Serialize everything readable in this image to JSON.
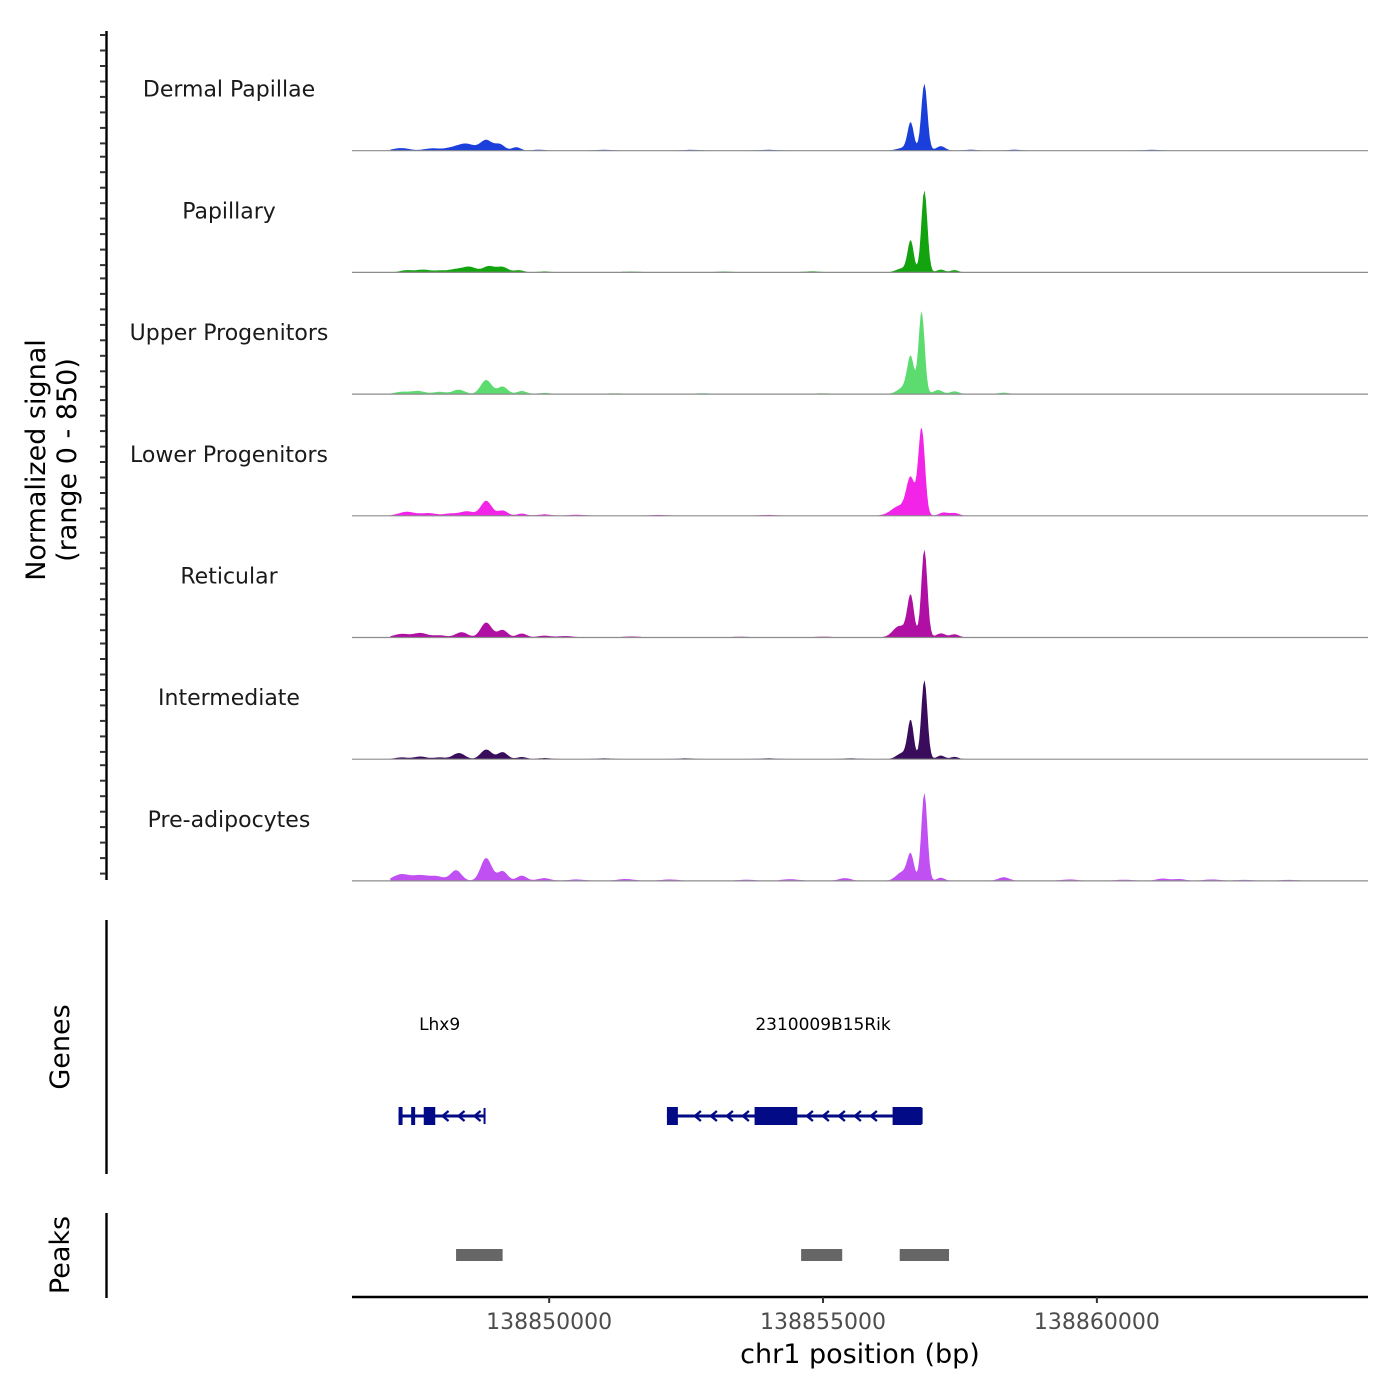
{
  "chart_data": {
    "type": "area",
    "title": "",
    "ylabel_line1": "Normalized signal",
    "ylabel_line2": "(range 0 - 850)",
    "xlabel": "chr1 position (bp)",
    "xlim": [
      138846400,
      138864950
    ],
    "ylim": [
      0,
      850
    ],
    "xticks": [
      {
        "value": 138850000,
        "label": "138850000"
      },
      {
        "value": 138855000,
        "label": "138855000"
      },
      {
        "value": 138860000,
        "label": "138860000"
      }
    ],
    "series": [
      {
        "name": "Dermal Papillae",
        "color": "#1a3fdb",
        "peaks": [
          [
            138847300,
            30,
            150
          ],
          [
            138847850,
            25,
            140
          ],
          [
            138848250,
            35,
            160
          ],
          [
            138848500,
            70,
            140
          ],
          [
            138848850,
            120,
            110
          ],
          [
            138849100,
            70,
            90
          ],
          [
            138849400,
            40,
            80
          ],
          [
            138849800,
            12,
            100
          ],
          [
            138851000,
            8,
            150
          ],
          [
            138852600,
            8,
            150
          ],
          [
            138854000,
            8,
            150
          ],
          [
            138856500,
            35,
            130
          ],
          [
            138856600,
            300,
            55
          ],
          [
            138856850,
            760,
            55
          ],
          [
            138857150,
            50,
            80
          ],
          [
            138857700,
            10,
            100
          ],
          [
            138858500,
            10,
            100
          ],
          [
            138861000,
            8,
            150
          ]
        ]
      },
      {
        "name": "Papillary",
        "color": "#13a30f",
        "peaks": [
          [
            138847400,
            25,
            120
          ],
          [
            138847700,
            30,
            120
          ],
          [
            138848000,
            20,
            120
          ],
          [
            138848300,
            35,
            130
          ],
          [
            138848550,
            60,
            120
          ],
          [
            138848900,
            70,
            110
          ],
          [
            138849150,
            60,
            100
          ],
          [
            138849450,
            25,
            90
          ],
          [
            138849900,
            10,
            120
          ],
          [
            138851500,
            8,
            150
          ],
          [
            138853200,
            8,
            150
          ],
          [
            138854800,
            10,
            150
          ],
          [
            138856450,
            45,
            110
          ],
          [
            138856600,
            350,
            55
          ],
          [
            138856850,
            930,
            55
          ],
          [
            138857150,
            30,
            70
          ],
          [
            138857400,
            25,
            70
          ]
        ]
      },
      {
        "name": "Upper Progenitors",
        "color": "#5cdc6f",
        "peaks": [
          [
            138847300,
            25,
            120
          ],
          [
            138847600,
            35,
            130
          ],
          [
            138848000,
            25,
            120
          ],
          [
            138848350,
            50,
            110
          ],
          [
            138848850,
            160,
            100
          ],
          [
            138849150,
            85,
            90
          ],
          [
            138849500,
            35,
            90
          ],
          [
            138849900,
            12,
            120
          ],
          [
            138851200,
            8,
            150
          ],
          [
            138852800,
            8,
            150
          ],
          [
            138855000,
            8,
            150
          ],
          [
            138856500,
            85,
            120
          ],
          [
            138856600,
            380,
            60
          ],
          [
            138856800,
            940,
            55
          ],
          [
            138857100,
            45,
            80
          ],
          [
            138857400,
            30,
            80
          ],
          [
            138858300,
            15,
            90
          ]
        ]
      },
      {
        "name": "Lower Progenitors",
        "color": "#f224e8",
        "peaks": [
          [
            138847400,
            45,
            150
          ],
          [
            138847800,
            30,
            140
          ],
          [
            138848200,
            25,
            130
          ],
          [
            138848500,
            50,
            120
          ],
          [
            138848850,
            170,
            100
          ],
          [
            138849150,
            60,
            90
          ],
          [
            138849500,
            25,
            90
          ],
          [
            138849900,
            15,
            120
          ],
          [
            138850500,
            10,
            150
          ],
          [
            138852000,
            8,
            150
          ],
          [
            138854000,
            8,
            150
          ],
          [
            138856400,
            110,
            150
          ],
          [
            138856600,
            400,
            75
          ],
          [
            138856800,
            1000,
            60
          ],
          [
            138857200,
            35,
            80
          ],
          [
            138857400,
            30,
            80
          ]
        ]
      },
      {
        "name": "Reticular",
        "color": "#b00fa3",
        "peaks": [
          [
            138847300,
            40,
            140
          ],
          [
            138847650,
            50,
            130
          ],
          [
            138848000,
            25,
            120
          ],
          [
            138848400,
            60,
            110
          ],
          [
            138848850,
            170,
            100
          ],
          [
            138849150,
            85,
            90
          ],
          [
            138849500,
            45,
            90
          ],
          [
            138849900,
            20,
            120
          ],
          [
            138850300,
            15,
            140
          ],
          [
            138851500,
            10,
            150
          ],
          [
            138853500,
            8,
            150
          ],
          [
            138855000,
            8,
            150
          ],
          [
            138856400,
            130,
            120
          ],
          [
            138856600,
            460,
            60
          ],
          [
            138856850,
            1000,
            55
          ],
          [
            138857150,
            45,
            80
          ],
          [
            138857400,
            35,
            80
          ]
        ]
      },
      {
        "name": "Intermediate",
        "color": "#3a0c5c",
        "peaks": [
          [
            138847300,
            20,
            120
          ],
          [
            138847650,
            30,
            120
          ],
          [
            138848000,
            20,
            110
          ],
          [
            138848350,
            70,
            110
          ],
          [
            138848850,
            110,
            100
          ],
          [
            138849150,
            80,
            90
          ],
          [
            138849500,
            25,
            90
          ],
          [
            138849900,
            12,
            120
          ],
          [
            138851000,
            8,
            150
          ],
          [
            138852500,
            8,
            150
          ],
          [
            138854000,
            8,
            150
          ],
          [
            138855500,
            8,
            150
          ],
          [
            138856450,
            70,
            100
          ],
          [
            138856600,
            430,
            55
          ],
          [
            138856850,
            900,
            55
          ],
          [
            138857150,
            40,
            70
          ],
          [
            138857400,
            25,
            70
          ]
        ]
      },
      {
        "name": "Pre-adipocytes",
        "color": "#c050f2",
        "peaks": [
          [
            138847300,
            75,
            150
          ],
          [
            138847650,
            60,
            140
          ],
          [
            138847950,
            50,
            130
          ],
          [
            138848300,
            120,
            100
          ],
          [
            138848850,
            260,
            100
          ],
          [
            138849150,
            110,
            90
          ],
          [
            138849500,
            60,
            90
          ],
          [
            138849900,
            30,
            120
          ],
          [
            138850500,
            15,
            150
          ],
          [
            138851400,
            20,
            150
          ],
          [
            138852200,
            15,
            150
          ],
          [
            138853600,
            12,
            150
          ],
          [
            138854400,
            18,
            150
          ],
          [
            138855400,
            30,
            110
          ],
          [
            138856450,
            100,
            110
          ],
          [
            138856600,
            280,
            60
          ],
          [
            138856850,
            1000,
            55
          ],
          [
            138857150,
            35,
            70
          ],
          [
            138858300,
            40,
            100
          ],
          [
            138859500,
            15,
            150
          ],
          [
            138860500,
            12,
            150
          ],
          [
            138861200,
            25,
            110
          ],
          [
            138861500,
            20,
            110
          ],
          [
            138862100,
            15,
            150
          ],
          [
            138862700,
            10,
            150
          ],
          [
            138863500,
            10,
            150
          ]
        ]
      }
    ],
    "genes_track_label": "Genes",
    "genes": [
      {
        "name": "Lhx9",
        "strand": "-",
        "start": 138847250,
        "end": 138848820,
        "exons": [
          [
            138847250,
            138847320
          ],
          [
            138847480,
            138847540
          ],
          [
            138847710,
            138847920
          ]
        ],
        "label_pos": 138848000
      },
      {
        "name": "2310009B15Rik",
        "strand": "-",
        "start": 138852150,
        "end": 138856800,
        "exons": [
          [
            138852150,
            138852350
          ],
          [
            138853750,
            138854530
          ],
          [
            138856270,
            138856800
          ]
        ],
        "label_pos": 138855000
      }
    ],
    "peaks_track_label": "Peaks",
    "peaks": [
      [
        138848300,
        138849150
      ],
      [
        138854600,
        138855350
      ],
      [
        138856400,
        138857300
      ]
    ],
    "gene_color": "#020b85",
    "peak_color": "#666666",
    "legend": "none"
  }
}
